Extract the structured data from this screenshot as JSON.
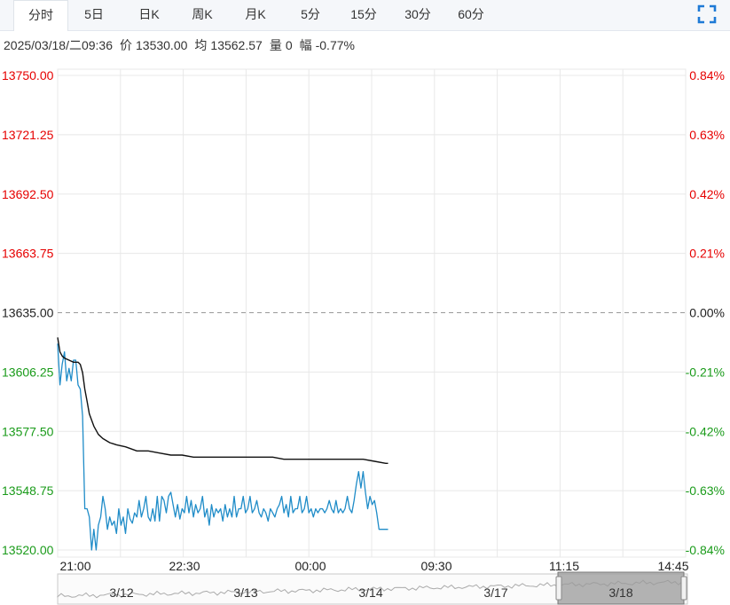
{
  "tabs": [
    "分时",
    "5日",
    "日K",
    "周K",
    "月K",
    "5分",
    "15分",
    "30分",
    "60分"
  ],
  "active_tab": 0,
  "fullscreen_icon": "fullscreen-icon",
  "info": {
    "datetime": "2025/03/18/二09:36",
    "price_label": "价",
    "price": "13530.00",
    "avg_label": "均",
    "avg": "13562.57",
    "volume_label": "量",
    "volume": "0",
    "change_label": "幅",
    "change": "-0.77%"
  },
  "colors": {
    "up": "#e60000",
    "down": "#1a9b1a",
    "neutral": "#222222",
    "price_line": "#1f8cc8",
    "avg_line": "#111111",
    "grid": "#e8e8e8"
  },
  "chart_data": {
    "type": "line",
    "prev_close": 13635.0,
    "ylim": [
      13520.0,
      13750.0
    ],
    "y_ticks_left": [
      "13750.00",
      "13721.25",
      "13692.50",
      "13663.75",
      "13635.00",
      "13606.25",
      "13577.50",
      "13548.75",
      "13520.00"
    ],
    "y_ticks_right": [
      "0.84%",
      "0.63%",
      "0.42%",
      "0.21%",
      "0.00%",
      "-0.21%",
      "-0.42%",
      "-0.63%",
      "-0.84%"
    ],
    "x_ticks": [
      "21:00",
      "22:30",
      "00:00",
      "09:30",
      "11:15",
      "14:45"
    ],
    "session_minutes": 555,
    "series": [
      {
        "role": "price",
        "points": [
          [
            0,
            13620
          ],
          [
            2,
            13600
          ],
          [
            4,
            13610
          ],
          [
            6,
            13616
          ],
          [
            8,
            13602
          ],
          [
            10,
            13608
          ],
          [
            12,
            13602
          ],
          [
            14,
            13612
          ],
          [
            16,
            13612
          ],
          [
            18,
            13600
          ],
          [
            20,
            13598
          ],
          [
            22,
            13585
          ],
          [
            24,
            13540
          ],
          [
            26,
            13540
          ],
          [
            28,
            13536
          ],
          [
            30,
            13520
          ],
          [
            32,
            13530
          ],
          [
            34,
            13520
          ],
          [
            36,
            13532
          ],
          [
            38,
            13536
          ],
          [
            40,
            13546
          ],
          [
            42,
            13540
          ],
          [
            44,
            13530
          ],
          [
            46,
            13536
          ],
          [
            48,
            13532
          ],
          [
            50,
            13534
          ],
          [
            52,
            13528
          ],
          [
            54,
            13540
          ],
          [
            56,
            13532
          ],
          [
            58,
            13536
          ],
          [
            60,
            13528
          ],
          [
            62,
            13540
          ],
          [
            64,
            13535
          ],
          [
            66,
            13533
          ],
          [
            68,
            13538
          ],
          [
            70,
            13536
          ],
          [
            72,
            13544
          ],
          [
            74,
            13536
          ],
          [
            76,
            13540
          ],
          [
            78,
            13546
          ],
          [
            80,
            13536
          ],
          [
            82,
            13534
          ],
          [
            84,
            13540
          ],
          [
            86,
            13534
          ],
          [
            88,
            13546
          ],
          [
            90,
            13534
          ],
          [
            92,
            13546
          ],
          [
            94,
            13544
          ],
          [
            96,
            13538
          ],
          [
            98,
            13546
          ],
          [
            100,
            13548
          ],
          [
            102,
            13542
          ],
          [
            104,
            13536
          ],
          [
            106,
            13542
          ],
          [
            108,
            13535
          ],
          [
            110,
            13540
          ],
          [
            112,
            13538
          ],
          [
            114,
            13546
          ],
          [
            116,
            13538
          ],
          [
            118,
            13544
          ],
          [
            120,
            13536
          ],
          [
            122,
            13542
          ],
          [
            124,
            13538
          ],
          [
            126,
            13540
          ],
          [
            128,
            13546
          ],
          [
            130,
            13536
          ],
          [
            132,
            13540
          ],
          [
            134,
            13532
          ],
          [
            136,
            13542
          ],
          [
            138,
            13536
          ],
          [
            140,
            13540
          ],
          [
            142,
            13538
          ],
          [
            144,
            13540
          ],
          [
            146,
            13534
          ],
          [
            148,
            13542
          ],
          [
            150,
            13536
          ],
          [
            152,
            13540
          ],
          [
            154,
            13536
          ],
          [
            156,
            13546
          ],
          [
            158,
            13536
          ],
          [
            160,
            13540
          ],
          [
            162,
            13540
          ],
          [
            164,
            13546
          ],
          [
            166,
            13538
          ],
          [
            168,
            13540
          ],
          [
            170,
            13546
          ],
          [
            172,
            13538
          ],
          [
            174,
            13540
          ],
          [
            176,
            13544
          ],
          [
            178,
            13538
          ],
          [
            180,
            13536
          ],
          [
            182,
            13540
          ],
          [
            184,
            13538
          ],
          [
            186,
            13534
          ],
          [
            188,
            13540
          ],
          [
            190,
            13538
          ],
          [
            192,
            13536
          ],
          [
            194,
            13540
          ],
          [
            196,
            13542
          ],
          [
            198,
            13546
          ],
          [
            200,
            13538
          ],
          [
            202,
            13542
          ],
          [
            204,
            13536
          ],
          [
            206,
            13546
          ],
          [
            208,
            13538
          ],
          [
            210,
            13540
          ],
          [
            212,
            13540
          ],
          [
            214,
            13546
          ],
          [
            216,
            13538
          ],
          [
            218,
            13540
          ],
          [
            220,
            13546
          ],
          [
            222,
            13538
          ],
          [
            224,
            13540
          ],
          [
            226,
            13536
          ],
          [
            228,
            13540
          ],
          [
            230,
            13538
          ],
          [
            232,
            13540
          ],
          [
            234,
            13540
          ],
          [
            236,
            13538
          ],
          [
            238,
            13540
          ],
          [
            240,
            13544
          ],
          [
            242,
            13540
          ],
          [
            244,
            13538
          ],
          [
            246,
            13544
          ],
          [
            248,
            13538
          ],
          [
            250,
            13540
          ],
          [
            252,
            13538
          ],
          [
            254,
            13540
          ],
          [
            256,
            13546
          ],
          [
            258,
            13540
          ],
          [
            260,
            13538
          ],
          [
            262,
            13544
          ],
          [
            264,
            13552
          ],
          [
            266,
            13558
          ],
          [
            268,
            13550
          ],
          [
            270,
            13558
          ],
          [
            272,
            13548
          ],
          [
            274,
            13540
          ],
          [
            276,
            13546
          ],
          [
            278,
            13542
          ],
          [
            280,
            13544
          ],
          [
            282,
            13538
          ],
          [
            284,
            13530
          ],
          [
            286,
            13530
          ],
          [
            288,
            13530
          ],
          [
            290,
            13530
          ],
          [
            292,
            13530
          ]
        ]
      },
      {
        "role": "average",
        "points": [
          [
            0,
            13623
          ],
          [
            2,
            13616
          ],
          [
            4,
            13614
          ],
          [
            6,
            13613
          ],
          [
            10,
            13612
          ],
          [
            14,
            13611
          ],
          [
            18,
            13611
          ],
          [
            20,
            13610
          ],
          [
            22,
            13606
          ],
          [
            24,
            13598
          ],
          [
            26,
            13592
          ],
          [
            28,
            13586
          ],
          [
            32,
            13580
          ],
          [
            36,
            13576
          ],
          [
            40,
            13574
          ],
          [
            46,
            13572
          ],
          [
            52,
            13571
          ],
          [
            60,
            13570
          ],
          [
            70,
            13568
          ],
          [
            80,
            13568
          ],
          [
            90,
            13567
          ],
          [
            100,
            13566
          ],
          [
            110,
            13566
          ],
          [
            120,
            13565
          ],
          [
            130,
            13565
          ],
          [
            140,
            13565
          ],
          [
            150,
            13565
          ],
          [
            160,
            13565
          ],
          [
            170,
            13565
          ],
          [
            180,
            13565
          ],
          [
            190,
            13565
          ],
          [
            200,
            13564
          ],
          [
            210,
            13564
          ],
          [
            220,
            13564
          ],
          [
            230,
            13564
          ],
          [
            240,
            13564
          ],
          [
            250,
            13564
          ],
          [
            256,
            13564
          ],
          [
            262,
            13564
          ],
          [
            270,
            13564
          ],
          [
            280,
            13563
          ],
          [
            290,
            13562
          ],
          [
            292,
            13562
          ]
        ]
      }
    ],
    "navigator": {
      "labels": [
        "3/12",
        "3/13",
        "3/14",
        "3/17",
        "3/18"
      ],
      "selected": "3/18"
    },
    "grid": true
  }
}
